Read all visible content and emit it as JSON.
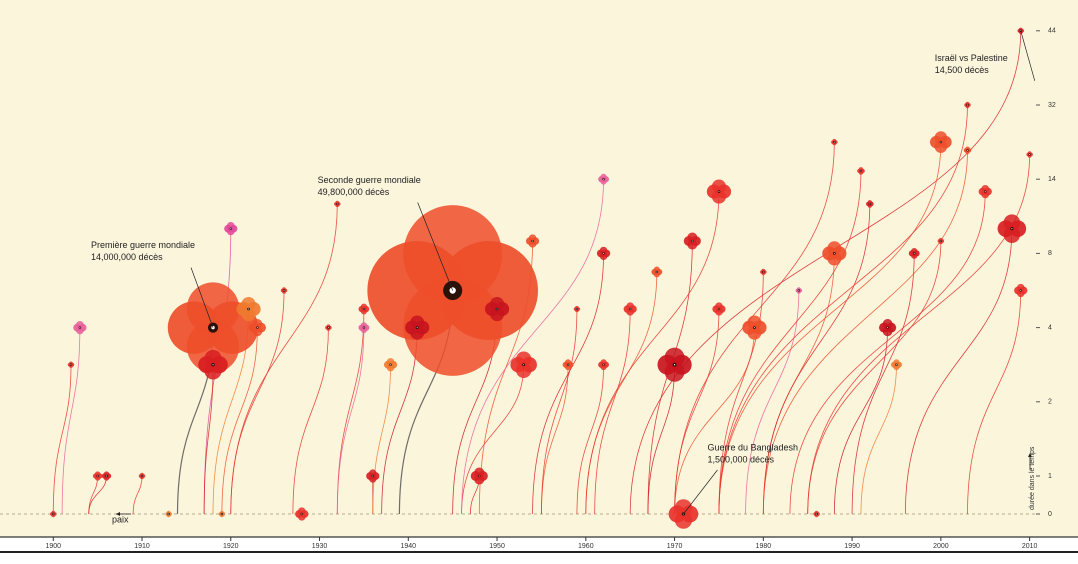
{
  "chart_data": {
    "type": "poppy",
    "y_label": "durée dans le temps",
    "peace_label": "paix",
    "xlim": [
      1894,
      2015
    ],
    "xticks": [
      1900,
      1910,
      1920,
      1930,
      1940,
      1950,
      1960,
      1970,
      1980,
      1990,
      2000,
      2010
    ],
    "ylim": [
      0,
      44
    ],
    "yticks": [
      0,
      1,
      2,
      4,
      8,
      14,
      32,
      44
    ],
    "wars": [
      {
        "start": 1939,
        "end": 1945,
        "duration": 6,
        "deaths": 49800000,
        "color": "#ee4e2a",
        "name": "Seconde guerre mondiale",
        "deaths_label": "49,800,000 décès"
      },
      {
        "start": 1914,
        "end": 1918,
        "duration": 4,
        "deaths": 14000000,
        "color": "#ee4e2a",
        "name": "Première guerre mondiale",
        "deaths_label": "14,000,000 décès"
      },
      {
        "start": 1971,
        "end": 1971,
        "duration": 0,
        "deaths": 1500000,
        "color": "#e8312a",
        "name": "Guerre du Bangladesh",
        "deaths_label": "1,500,000 décès"
      },
      {
        "start": 1965,
        "end": 2009,
        "duration": 44,
        "deaths": 14500,
        "color": "#d81e22",
        "name": "Israël vs Palestine",
        "deaths_label": "14,500 décès"
      },
      {
        "start": 1900,
        "end": 1900,
        "duration": 0,
        "deaths": 20000,
        "color": "#e8312a"
      },
      {
        "start": 1901,
        "end": 1903,
        "duration": 4,
        "deaths": 300000,
        "color": "#e8609a"
      },
      {
        "start": 1900,
        "end": 1902,
        "duration": 3,
        "deaths": 50000,
        "color": "#e8312a"
      },
      {
        "start": 1904,
        "end": 1905,
        "duration": 1,
        "deaths": 150000,
        "color": "#e8312a"
      },
      {
        "start": 1904,
        "end": 1906,
        "duration": 1,
        "deaths": 150000,
        "color": "#d81e22"
      },
      {
        "start": 1909,
        "end": 1910,
        "duration": 1,
        "deaths": 20000,
        "color": "#e8312a"
      },
      {
        "start": 1913,
        "end": 1913,
        "duration": 0,
        "deaths": 20000,
        "color": "#f07a30"
      },
      {
        "start": 1917,
        "end": 1920,
        "duration": 10,
        "deaths": 300000,
        "color": "#e04a9a"
      },
      {
        "start": 1917,
        "end": 1918,
        "duration": 3,
        "deaths": 1500000,
        "color": "#d81e22"
      },
      {
        "start": 1918,
        "end": 1922,
        "duration": 5,
        "deaths": 1000000,
        "color": "#f07a30"
      },
      {
        "start": 1919,
        "end": 1923,
        "duration": 4,
        "deaths": 500000,
        "color": "#ee4e2a"
      },
      {
        "start": 1919,
        "end": 1919,
        "duration": 0,
        "deaths": 20000,
        "color": "#f07a30"
      },
      {
        "start": 1920,
        "end": 1926,
        "duration": 6,
        "deaths": 20000,
        "color": "#e8312a"
      },
      {
        "start": 1928,
        "end": 1928,
        "duration": 0,
        "deaths": 300000,
        "color": "#e8312a"
      },
      {
        "start": 1927,
        "end": 1931,
        "duration": 4,
        "deaths": 20000,
        "color": "#e8312a"
      },
      {
        "start": 1920,
        "end": 1932,
        "duration": 12,
        "deaths": 20000,
        "color": "#e8312a"
      },
      {
        "start": 1932,
        "end": 1935,
        "duration": 5,
        "deaths": 200000,
        "color": "#e8312a"
      },
      {
        "start": 1932,
        "end": 1935,
        "duration": 4,
        "deaths": 200000,
        "color": "#e8609a"
      },
      {
        "start": 1936,
        "end": 1936,
        "duration": 1,
        "deaths": 300000,
        "color": "#d81e22"
      },
      {
        "start": 1936,
        "end": 1938,
        "duration": 3,
        "deaths": 300000,
        "color": "#f07a30"
      },
      {
        "start": 1937,
        "end": 1941,
        "duration": 4,
        "deaths": 1000000,
        "color": "#c8141e"
      },
      {
        "start": 1945,
        "end": 1950,
        "duration": 5,
        "deaths": 1000000,
        "color": "#c8141e"
      },
      {
        "start": 1947,
        "end": 1948,
        "duration": 1,
        "deaths": 500000,
        "color": "#d81e22"
      },
      {
        "start": 1946,
        "end": 1953,
        "duration": 3,
        "deaths": 1200000,
        "color": "#e8312a"
      },
      {
        "start": 1948,
        "end": 1954,
        "duration": 9,
        "deaths": 300000,
        "color": "#ee4e2a"
      },
      {
        "start": 1955,
        "end": 1958,
        "duration": 3,
        "deaths": 200000,
        "color": "#ee4e2a"
      },
      {
        "start": 1955,
        "end": 1959,
        "duration": 5,
        "deaths": 20000,
        "color": "#e8312a"
      },
      {
        "start": 1946,
        "end": 1962,
        "duration": 14,
        "deaths": 200000,
        "color": "#e8609a"
      },
      {
        "start": 1954,
        "end": 1962,
        "duration": 8,
        "deaths": 300000,
        "color": "#d81e22"
      },
      {
        "start": 1959,
        "end": 1962,
        "duration": 3,
        "deaths": 200000,
        "color": "#e8312a"
      },
      {
        "start": 1961,
        "end": 1965,
        "duration": 5,
        "deaths": 300000,
        "color": "#e8312a"
      },
      {
        "start": 1960,
        "end": 1968,
        "duration": 7,
        "deaths": 200000,
        "color": "#ee4e2a"
      },
      {
        "start": 1967,
        "end": 1970,
        "duration": 3,
        "deaths": 2000000,
        "color": "#c8141e"
      },
      {
        "start": 1967,
        "end": 1972,
        "duration": 9,
        "deaths": 500000,
        "color": "#d81e22"
      },
      {
        "start": 1960,
        "end": 1975,
        "duration": 13,
        "deaths": 1000000,
        "color": "#e8312a"
      },
      {
        "start": 1970,
        "end": 1975,
        "duration": 5,
        "deaths": 300000,
        "color": "#e8312a"
      },
      {
        "start": 1970,
        "end": 1979,
        "duration": 4,
        "deaths": 1000000,
        "color": "#ee4e2a"
      },
      {
        "start": 1975,
        "end": 1980,
        "duration": 7,
        "deaths": 20000,
        "color": "#e8312a"
      },
      {
        "start": 1978,
        "end": 1984,
        "duration": 6,
        "deaths": 20000,
        "color": "#e8609a"
      },
      {
        "start": 1986,
        "end": 1986,
        "duration": 0,
        "deaths": 20000,
        "color": "#e8312a"
      },
      {
        "start": 1980,
        "end": 1988,
        "duration": 8,
        "deaths": 1000000,
        "color": "#ee4e2a"
      },
      {
        "start": 1970,
        "end": 1988,
        "duration": 23,
        "deaths": 20000,
        "color": "#e8312a"
      },
      {
        "start": 1975,
        "end": 1991,
        "duration": 16,
        "deaths": 100000,
        "color": "#e8312a"
      },
      {
        "start": 1980,
        "end": 1992,
        "duration": 12,
        "deaths": 100000,
        "color": "#d81e22"
      },
      {
        "start": 1988,
        "end": 1994,
        "duration": 4,
        "deaths": 500000,
        "color": "#c8141e"
      },
      {
        "start": 1991,
        "end": 1995,
        "duration": 3,
        "deaths": 200000,
        "color": "#f07a30"
      },
      {
        "start": 1990,
        "end": 1997,
        "duration": 8,
        "deaths": 200000,
        "color": "#d81e22"
      },
      {
        "start": 1985,
        "end": 2000,
        "duration": 9,
        "deaths": 20000,
        "color": "#e8312a"
      },
      {
        "start": 1975,
        "end": 2000,
        "duration": 23,
        "deaths": 800000,
        "color": "#ee4e2a"
      },
      {
        "start": 1980,
        "end": 2003,
        "duration": 21,
        "deaths": 100000,
        "color": "#ee4e2a"
      },
      {
        "start": 1975,
        "end": 2003,
        "duration": 32,
        "deaths": 20000,
        "color": "#e8312a"
      },
      {
        "start": 1983,
        "end": 2005,
        "duration": 13,
        "deaths": 300000,
        "color": "#e8312a"
      },
      {
        "start": 1996,
        "end": 2008,
        "duration": 10,
        "deaths": 1400000,
        "color": "#d81e22"
      },
      {
        "start": 2003,
        "end": 2009,
        "duration": 6,
        "deaths": 300000,
        "color": "#e8312a"
      },
      {
        "start": 1985,
        "end": 2010,
        "duration": 20,
        "deaths": 20000,
        "color": "#e8312a"
      }
    ]
  }
}
